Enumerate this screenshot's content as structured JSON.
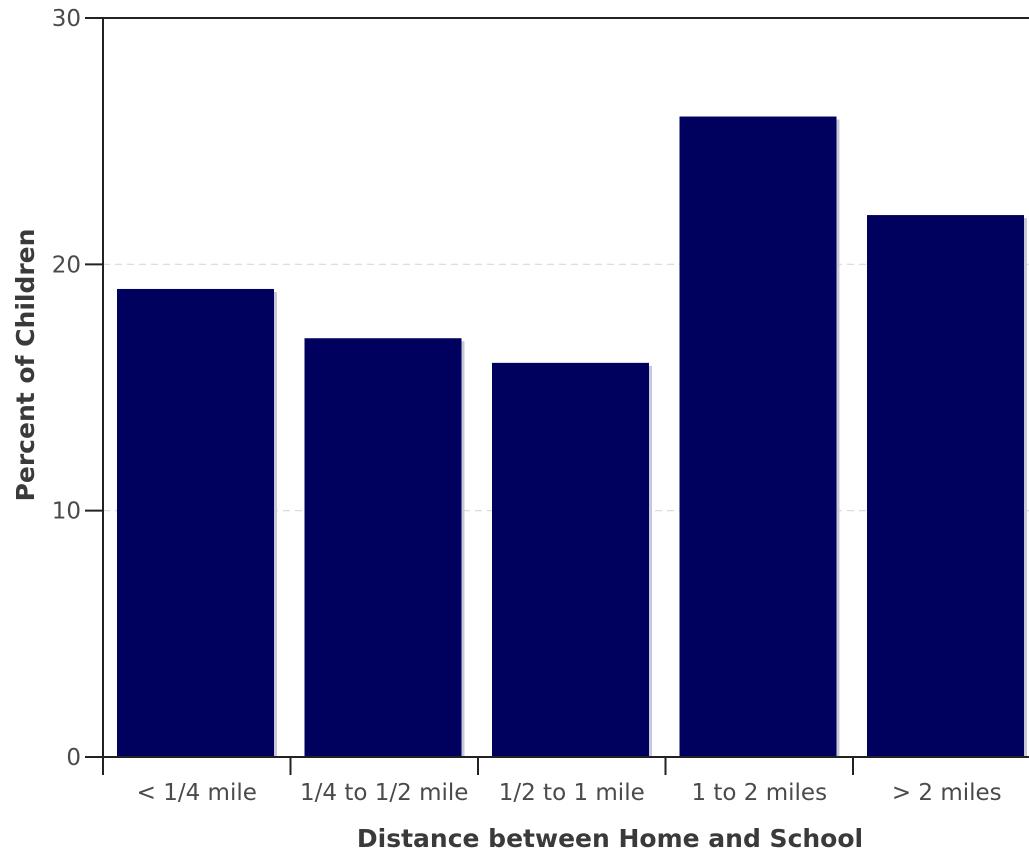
{
  "chart_data": {
    "type": "bar",
    "categories": [
      "< 1/4 mile",
      "1/4 to 1/2 mile",
      "1/2 to 1 mile",
      "1 to 2 miles",
      "> 2 miles"
    ],
    "values": [
      19,
      17,
      16,
      26,
      22
    ],
    "title": "",
    "xlabel": "Distance between Home and School",
    "ylabel": "Percent of Children",
    "ylim": [
      0,
      30
    ],
    "yticks": [
      0,
      10,
      20,
      30
    ],
    "ytick_labels": [
      "0",
      "10",
      "20",
      "30"
    ],
    "grid": true,
    "bar_color": "#00005f"
  }
}
